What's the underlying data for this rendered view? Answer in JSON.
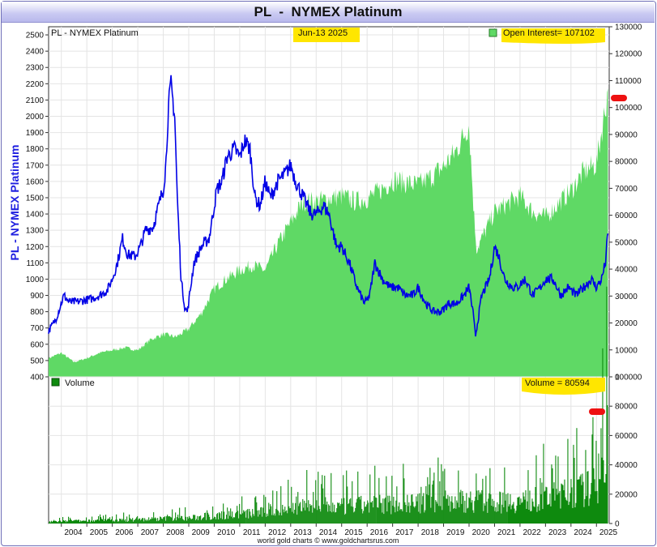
{
  "title": "PL  -  NYMEX Platinum",
  "upper_panel": {
    "legend_series": "PL  -  NYMEX Platinum",
    "date": "Jun-13  2025",
    "open_interest_label": "Open Interest= 107102",
    "left_axis_label": "PL  -  NYMEX Platinum"
  },
  "lower_panel": {
    "legend": "Volume",
    "volume_label": "Volume = 80594"
  },
  "footer": "world gold charts © www.goldchartsrus.com",
  "colors": {
    "price": "#0000e6",
    "open_interest": "#5fd965",
    "volume": "#0e8a0e",
    "highlight": "#ffe600",
    "marker": "#ee1111",
    "title_gradient": "#c9c9f2"
  },
  "chart_data": [
    {
      "type": "line",
      "title": "PL  -  NYMEX Platinum",
      "ylim": [
        400,
        2550
      ],
      "yticks": [
        400,
        500,
        600,
        700,
        800,
        900,
        1000,
        1100,
        1200,
        1300,
        1400,
        1500,
        1600,
        1700,
        1800,
        1900,
        2000,
        2100,
        2200,
        2300,
        2400,
        2500
      ],
      "xlim": [
        2003.5,
        2025.5
      ],
      "xticks": [
        "2004",
        "2005",
        "2006",
        "2007",
        "2008",
        "2009",
        "2010",
        "2011",
        "2012",
        "2013",
        "2014",
        "2015",
        "2016",
        "2017",
        "2018",
        "2019",
        "2020",
        "2021",
        "2022",
        "2023",
        "2024",
        "2025"
      ],
      "series": [
        {
          "name": "PL  -  NYMEX Platinum",
          "axis": "left",
          "x": [
            2003.5,
            2003.8,
            2004.1,
            2004.3,
            2004.6,
            2004.9,
            2005.2,
            2005.5,
            2005.8,
            2006.0,
            2006.2,
            2006.4,
            2006.6,
            2006.9,
            2007.1,
            2007.3,
            2007.6,
            2007.9,
            2008.0,
            2008.1,
            2008.2,
            2008.3,
            2008.45,
            2008.55,
            2008.7,
            2008.85,
            2008.95,
            2009.2,
            2009.5,
            2009.8,
            2010.1,
            2010.3,
            2010.5,
            2010.8,
            2011.0,
            2011.2,
            2011.4,
            2011.6,
            2011.8,
            2012.0,
            2012.2,
            2012.5,
            2012.8,
            2013.0,
            2013.2,
            2013.5,
            2013.8,
            2014.0,
            2014.3,
            2014.5,
            2014.8,
            2015.0,
            2015.3,
            2015.6,
            2015.9,
            2016.1,
            2016.3,
            2016.6,
            2016.9,
            2017.2,
            2017.5,
            2017.8,
            2018.0,
            2018.3,
            2018.6,
            2018.9,
            2019.2,
            2019.5,
            2019.8,
            2020.0,
            2020.15,
            2020.25,
            2020.5,
            2020.8,
            2021.0,
            2021.15,
            2021.4,
            2021.7,
            2021.9,
            2022.2,
            2022.5,
            2022.8,
            2023.0,
            2023.3,
            2023.6,
            2023.9,
            2024.2,
            2024.5,
            2024.8,
            2025.0,
            2025.2,
            2025.35,
            2025.45
          ],
          "y": [
            680,
            760,
            900,
            860,
            860,
            870,
            880,
            900,
            930,
            1000,
            1100,
            1250,
            1150,
            1140,
            1200,
            1300,
            1320,
            1500,
            1550,
            1700,
            2050,
            2200,
            2000,
            1500,
            1000,
            820,
            800,
            1100,
            1200,
            1250,
            1550,
            1600,
            1750,
            1800,
            1750,
            1850,
            1800,
            1500,
            1450,
            1600,
            1500,
            1600,
            1650,
            1700,
            1600,
            1500,
            1400,
            1400,
            1450,
            1400,
            1200,
            1200,
            1100,
            950,
            850,
            900,
            1100,
            1000,
            950,
            950,
            900,
            900,
            950,
            850,
            800,
            800,
            850,
            850,
            900,
            950,
            800,
            650,
            900,
            1000,
            1200,
            1150,
            1000,
            950,
            950,
            1000,
            900,
            950,
            1000,
            1000,
            900,
            950,
            900,
            950,
            1000,
            950,
            1000,
            1100,
            1280
          ]
        },
        {
          "name": "Open Interest",
          "axis": "right",
          "ylim": [
            0,
            130000
          ],
          "yticks": [
            0,
            10000,
            20000,
            30000,
            40000,
            50000,
            60000,
            70000,
            80000,
            90000,
            100000,
            110000,
            120000,
            130000
          ],
          "x": [
            2003.5,
            2004.0,
            2004.5,
            2005.0,
            2005.5,
            2006.0,
            2006.5,
            2007.0,
            2007.5,
            2008.0,
            2008.5,
            2009.0,
            2009.5,
            2010.0,
            2010.5,
            2011.0,
            2011.5,
            2012.0,
            2012.5,
            2013.0,
            2013.5,
            2014.0,
            2014.5,
            2015.0,
            2015.5,
            2016.0,
            2016.5,
            2017.0,
            2017.5,
            2018.0,
            2018.5,
            2019.0,
            2019.5,
            2020.0,
            2020.2,
            2020.3,
            2020.5,
            2021.0,
            2021.5,
            2022.0,
            2022.5,
            2023.0,
            2023.5,
            2024.0,
            2024.5,
            2025.0,
            2025.45
          ],
          "y": [
            7000,
            9000,
            5500,
            7000,
            9000,
            10000,
            11000,
            10000,
            14000,
            16000,
            15000,
            18000,
            24000,
            33000,
            37000,
            40000,
            42000,
            40000,
            50000,
            58000,
            66000,
            66000,
            67000,
            68000,
            66000,
            67000,
            70000,
            74000,
            73000,
            72000,
            75000,
            79000,
            85000,
            95000,
            60000,
            48000,
            52000,
            62000,
            65000,
            68000,
            62000,
            60000,
            65000,
            70000,
            77000,
            80000,
            107102
          ]
        }
      ]
    },
    {
      "type": "bar",
      "title": "Volume",
      "ylim": [
        0,
        100000
      ],
      "yticks": [
        0,
        20000,
        40000,
        60000,
        80000,
        100000
      ],
      "xlim": [
        2003.5,
        2025.5
      ],
      "series": [
        {
          "name": "Volume",
          "x": [
            2003.5,
            2004.0,
            2005.0,
            2006.0,
            2007.0,
            2008.0,
            2009.0,
            2010.0,
            2011.0,
            2012.0,
            2013.0,
            2014.0,
            2015.0,
            2016.0,
            2017.0,
            2018.0,
            2019.0,
            2020.0,
            2021.0,
            2022.0,
            2023.0,
            2024.0,
            2025.0,
            2025.45
          ],
          "y": [
            1500,
            2000,
            2500,
            3000,
            3500,
            4500,
            5000,
            6500,
            8500,
            10000,
            14000,
            16000,
            15000,
            17000,
            18000,
            18000,
            20000,
            21000,
            19000,
            20000,
            23000,
            28000,
            34000,
            80594
          ]
        }
      ]
    }
  ]
}
